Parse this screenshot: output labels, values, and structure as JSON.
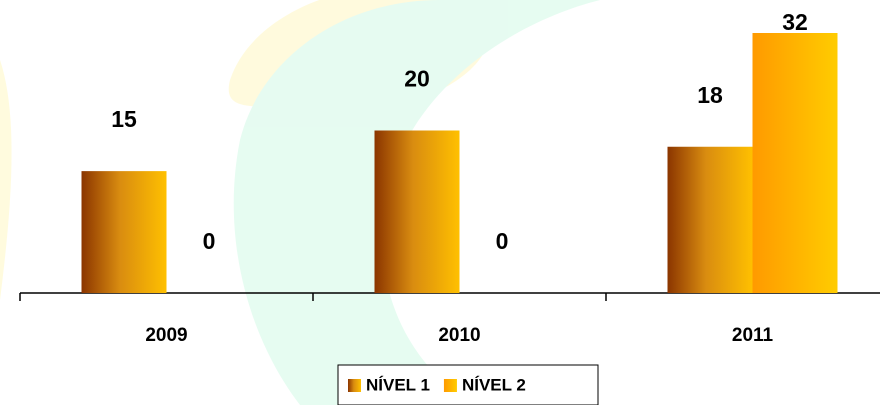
{
  "chart_data": {
    "type": "bar",
    "categories": [
      "2009",
      "2010",
      "2011"
    ],
    "series": [
      {
        "name": "NÍVEL 1",
        "color": "#ffc000",
        "values": [
          15,
          20,
          18
        ]
      },
      {
        "name": "NÍVEL 2",
        "color": "#ffcc00",
        "values": [
          0,
          0,
          32
        ]
      }
    ]
  }
}
